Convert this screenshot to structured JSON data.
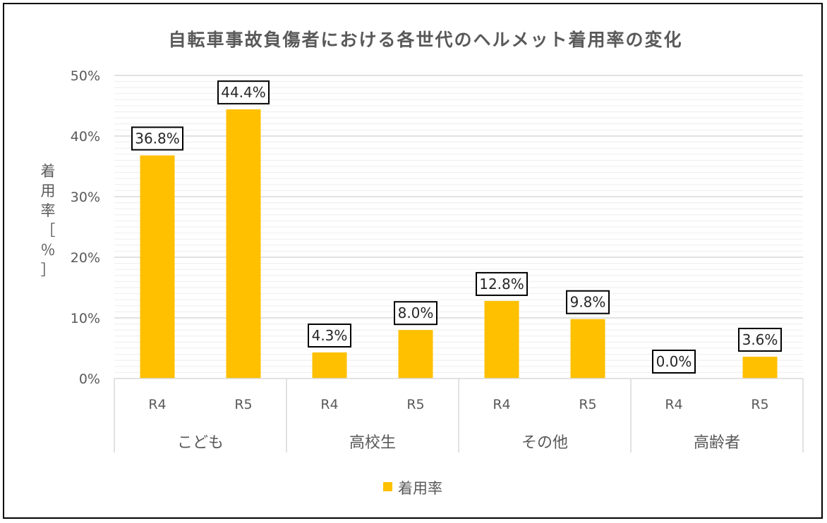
{
  "chart_data": {
    "type": "bar",
    "title": "自転車事故負傷者における各世代のヘルメット着用率の変化",
    "ylabel": [
      "着",
      "用",
      "率",
      "［",
      "％",
      "］"
    ],
    "groups": [
      "こども",
      "高校生",
      "その他",
      "高齢者"
    ],
    "categories": [
      "R4",
      "R5",
      "R4",
      "R5",
      "R4",
      "R5",
      "R4",
      "R5"
    ],
    "series": [
      {
        "name": "着用率",
        "values": [
          36.8,
          44.4,
          4.3,
          8.0,
          12.8,
          9.8,
          0.0,
          3.6
        ],
        "labels": [
          "36.8%",
          "44.4%",
          "4.3%",
          "8.0%",
          "12.8%",
          "9.8%",
          "0.0%",
          "3.6%"
        ]
      }
    ],
    "ylim": [
      0,
      50
    ],
    "yticks": [
      "0%",
      "10%",
      "20%",
      "30%",
      "40%",
      "50%"
    ],
    "grid": true,
    "legend_position": "bottom",
    "colors": {
      "bar": "#FFC000",
      "gridMajor": "#D9D9D9",
      "gridMinor": "#EDEDED",
      "text": "#595959"
    }
  }
}
